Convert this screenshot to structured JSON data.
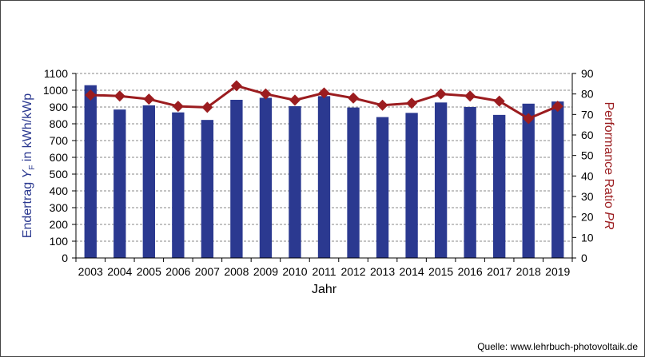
{
  "chart_data": {
    "type": "bar",
    "categories": [
      "2003",
      "2004",
      "2005",
      "2006",
      "2007",
      "2008",
      "2009",
      "2010",
      "2011",
      "2012",
      "2013",
      "2014",
      "2015",
      "2016",
      "2017",
      "2018",
      "2019"
    ],
    "series": [
      {
        "name": "Endertrag",
        "axis": "left",
        "type": "bar",
        "color": "#2b3990",
        "values": [
          1030,
          885,
          910,
          868,
          823,
          943,
          955,
          905,
          965,
          897,
          840,
          865,
          927,
          900,
          853,
          920,
          933
        ]
      },
      {
        "name": "Performance Ratio",
        "axis": "right",
        "type": "line",
        "color": "#9b1c1f",
        "values": [
          79.5,
          79.0,
          77.5,
          74.0,
          73.5,
          84.0,
          80.0,
          77.0,
          80.5,
          78.0,
          74.5,
          75.5,
          80.0,
          79.0,
          76.5,
          68.0,
          74.0
        ]
      }
    ],
    "xlabel": "Jahr",
    "ylabel_left": {
      "pre": "Endertrag ",
      "var": "Y",
      "sub": "F",
      "post": " in kWh/kWp"
    },
    "ylabel_right": {
      "pre": "Performance Ratio ",
      "var": "PR"
    },
    "ylim_left": [
      0,
      1100
    ],
    "yticks_left": [
      0,
      100,
      200,
      300,
      400,
      500,
      600,
      700,
      800,
      900,
      1000,
      1100
    ],
    "ylim_right": [
      0,
      90
    ],
    "yticks_right": [
      0,
      10,
      20,
      30,
      40,
      50,
      60,
      70,
      80,
      90
    ],
    "grid": true,
    "left_axis_color": "#2b3990",
    "right_axis_color": "#9b1c1f"
  },
  "source": "Quelle: www.lehrbuch-photovoltaik.de"
}
